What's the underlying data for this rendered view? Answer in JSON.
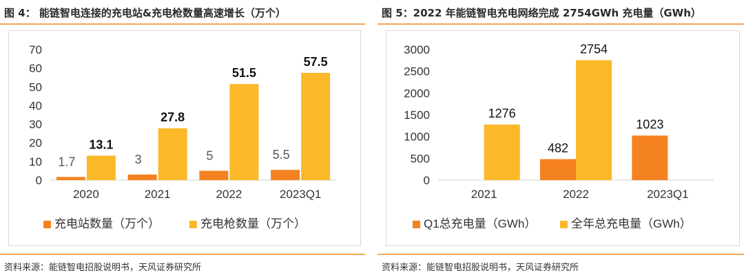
{
  "figures": [
    {
      "title": "图 4：  能链智电连接的充电站&充电枪数量高速增长（万个）",
      "source": "资料来源：能链智电招股说明书，天风证券研究所"
    },
    {
      "title": "图 5：2022 年能链智电充电网络完成 2754GWh 充电量（GWh）",
      "source": "资料来源：能链智电招股说明书，天风证券研究所"
    }
  ],
  "chart_data": [
    {
      "type": "bar",
      "categories": [
        "2020",
        "2021",
        "2022",
        "2023Q1"
      ],
      "series": [
        {
          "name": "充电站数量（万个）",
          "values": [
            1.7,
            3,
            5,
            5.5
          ],
          "labels": [
            "1.7",
            "3",
            "5",
            "5.5"
          ],
          "color": "#f58220"
        },
        {
          "name": "充电枪数量（万个）",
          "values": [
            13.1,
            27.8,
            51.5,
            57.5
          ],
          "labels": [
            "13.1",
            "27.8",
            "51.5",
            "57.5"
          ],
          "color": "#fbb829"
        }
      ],
      "ylim": [
        0,
        70
      ],
      "yticks": [
        "0",
        "10",
        "20",
        "30",
        "40",
        "50",
        "60",
        "70"
      ],
      "legend": "bottom",
      "grid": false
    },
    {
      "type": "bar",
      "categories": [
        "2021",
        "2022",
        "2023Q1"
      ],
      "series": [
        {
          "name": "Q1总充电量（GWh）",
          "values": [
            null,
            482,
            1023
          ],
          "labels": [
            "",
            "482",
            "1023"
          ],
          "color": "#f58220"
        },
        {
          "name": "全年总充电量（GWh）",
          "values": [
            1276,
            2754,
            null
          ],
          "labels": [
            "1276",
            "2754",
            ""
          ],
          "color": "#fbb829"
        }
      ],
      "ylim": [
        0,
        3000
      ],
      "yticks": [
        "0",
        "500",
        "1000",
        "1500",
        "2000",
        "2500",
        "3000"
      ],
      "legend": "bottom",
      "grid": false
    }
  ]
}
